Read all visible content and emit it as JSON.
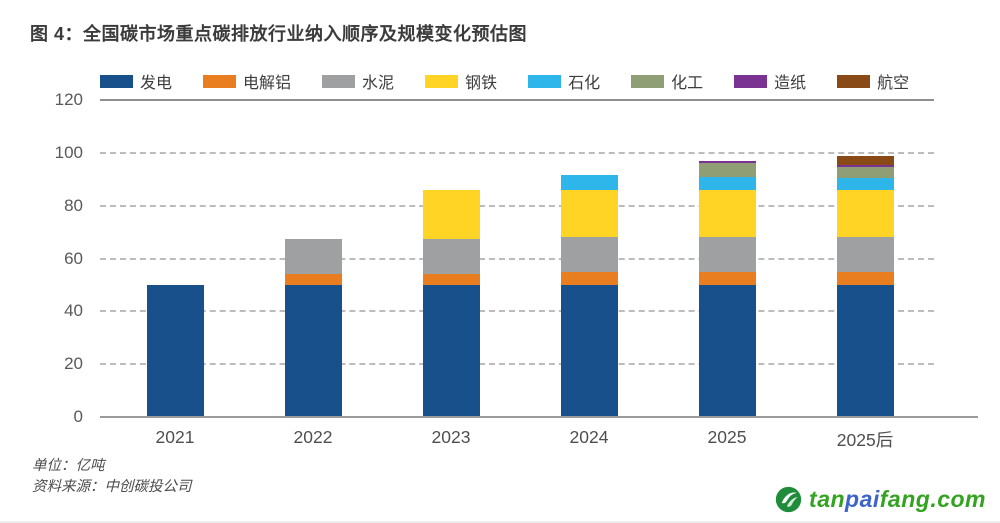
{
  "title": "图 4：全国碳市场重点碳排放行业纳入顺序及规模变化预估图",
  "chart_data": {
    "type": "bar",
    "stacked": true,
    "title": "全国碳市场重点碳排放行业纳入顺序及规模变化预估图",
    "categories": [
      "2021",
      "2022",
      "2023",
      "2024",
      "2025",
      "2025后"
    ],
    "series": [
      {
        "name": "发电",
        "color": "#17508A",
        "values": [
          50,
          50,
          50,
          50,
          50,
          50
        ]
      },
      {
        "name": "电解铝",
        "color": "#E97E21",
        "values": [
          0,
          4,
          4,
          5,
          5,
          5
        ]
      },
      {
        "name": "水泥",
        "color": "#9FA0A2",
        "values": [
          0,
          13.5,
          13.5,
          13,
          13,
          13
        ]
      },
      {
        "name": "钢铁",
        "color": "#FFD424",
        "values": [
          0,
          0,
          18.5,
          18,
          18,
          18
        ]
      },
      {
        "name": "石化",
        "color": "#2EB6EA",
        "values": [
          0,
          0,
          0,
          5.5,
          5,
          4.5
        ]
      },
      {
        "name": "化工",
        "color": "#8F9E74",
        "values": [
          0,
          0,
          0,
          0,
          5,
          4
        ]
      },
      {
        "name": "造纸",
        "color": "#7A3293",
        "values": [
          0,
          0,
          0,
          0,
          1,
          1
        ]
      },
      {
        "name": "航空",
        "color": "#8A4A17",
        "values": [
          0,
          0,
          0,
          0,
          0,
          3.5
        ]
      }
    ],
    "totals": [
      50,
      67.5,
      86,
      91.5,
      97,
      99
    ],
    "ylim": [
      0,
      120
    ],
    "yticks": [
      0,
      20,
      40,
      60,
      80,
      100,
      120
    ],
    "grid": "horizontal dashed, solid at 0 and 120",
    "legend_position": "top",
    "unit": "亿吨"
  },
  "footer": {
    "unit_label": "单位：亿吨",
    "source_label": "资料来源：中创碳投公司"
  },
  "watermark": {
    "icon": "tanpaifang-logo-icon",
    "text_part1": "tan",
    "text_part2": "pai",
    "text_part3": "fang.com",
    "green": "#35A322",
    "blue": "#3D64C8",
    "icon_green": "#1E8C3A"
  }
}
